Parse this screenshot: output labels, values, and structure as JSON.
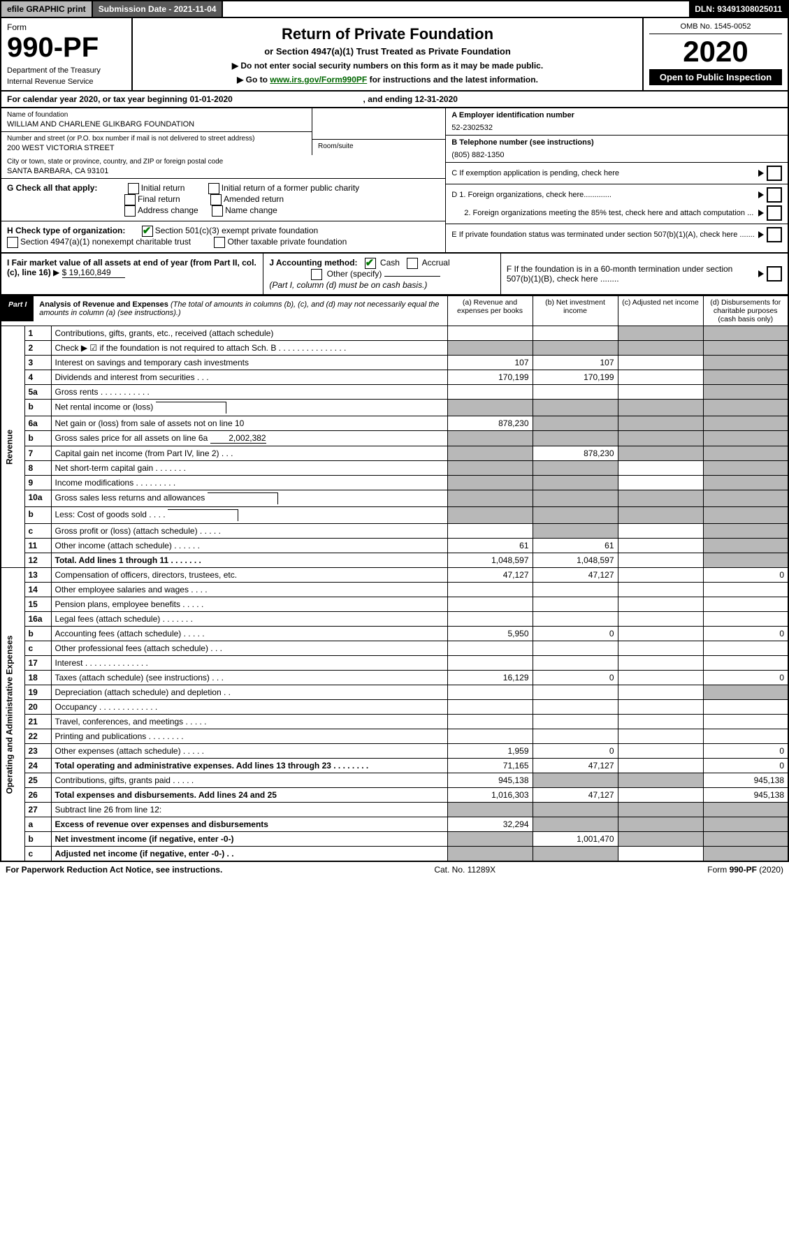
{
  "topbar": {
    "efile": "efile GRAPHIC print",
    "submission": "Submission Date - 2021-11-04",
    "dln": "DLN: 93491308025011"
  },
  "header": {
    "form_label": "Form",
    "form_number": "990-PF",
    "dept1": "Department of the Treasury",
    "dept2": "Internal Revenue Service",
    "title": "Return of Private Foundation",
    "subtitle": "or Section 4947(a)(1) Trust Treated as Private Foundation",
    "instr1": "▶ Do not enter social security numbers on this form as it may be made public.",
    "instr2_pre": "▶ Go to ",
    "instr2_link": "www.irs.gov/Form990PF",
    "instr2_post": " for instructions and the latest information.",
    "omb": "OMB No. 1545-0052",
    "year": "2020",
    "open_public": "Open to Public Inspection"
  },
  "cal_year": {
    "pre": "For calendar year 2020, or tax year beginning ",
    "begin": "01-01-2020",
    "mid": ", and ending ",
    "end": "12-31-2020"
  },
  "info": {
    "name_label": "Name of foundation",
    "name": "WILLIAM AND CHARLENE GLIKBARG FOUNDATION",
    "street_label": "Number and street (or P.O. box number if mail is not delivered to street address)",
    "street": "200 WEST VICTORIA STREET",
    "room_label": "Room/suite",
    "city_label": "City or town, state or province, country, and ZIP or foreign postal code",
    "city": "SANTA BARBARA, CA  93101",
    "ein_label": "A Employer identification number",
    "ein": "52-2302532",
    "tel_label": "B Telephone number (see instructions)",
    "tel": "(805) 882-1350",
    "c_label": "C If exemption application is pending, check here",
    "d1_label": "D 1. Foreign organizations, check here.............",
    "d2_label": "2. Foreign organizations meeting the 85% test, check here and attach computation ...",
    "e_label": "E If private foundation status was terminated under section 507(b)(1)(A), check here .......",
    "f_label": "F If the foundation is in a 60-month termination under section 507(b)(1)(B), check here ........"
  },
  "g": {
    "label": "G Check all that apply:",
    "opts": [
      "Initial return",
      "Initial return of a former public charity",
      "Final return",
      "Amended return",
      "Address change",
      "Name change"
    ]
  },
  "h": {
    "label": "H Check type of organization:",
    "opt1": "Section 501(c)(3) exempt private foundation",
    "opt2": "Section 4947(a)(1) nonexempt charitable trust",
    "opt3": "Other taxable private foundation"
  },
  "i": {
    "label": "I Fair market value of all assets at end of year (from Part II, col. (c), line 16)",
    "val": "$  19,160,849"
  },
  "j": {
    "label": "J Accounting method:",
    "cash": "Cash",
    "accrual": "Accrual",
    "other": "Other (specify)",
    "note": "(Part I, column (d) must be on cash basis.)"
  },
  "part1": {
    "label": "Part I",
    "title": "Analysis of Revenue and Expenses",
    "subtitle": "(The total of amounts in columns (b), (c), and (d) may not necessarily equal the amounts in column (a) (see instructions).)",
    "col_a": "(a) Revenue and expenses per books",
    "col_b": "(b) Net investment income",
    "col_c": "(c) Adjusted net income",
    "col_d": "(d) Disbursements for charitable purposes (cash basis only)"
  },
  "side": {
    "revenue": "Revenue",
    "expenses": "Operating and Administrative Expenses"
  },
  "rows": [
    {
      "n": "1",
      "desc": "Contributions, gifts, grants, etc., received (attach schedule)",
      "a": "",
      "b": "",
      "c": "g",
      "d": "g"
    },
    {
      "n": "2",
      "desc": "Check ▶ ☑ if the foundation is not required to attach Sch. B   .  .  .  .  .  .  .  .  .  .  .  .  .  .  .",
      "a": "g",
      "b": "g",
      "c": "g",
      "d": "g",
      "nob": true
    },
    {
      "n": "3",
      "desc": "Interest on savings and temporary cash investments",
      "a": "107",
      "b": "107",
      "c": "",
      "d": "g"
    },
    {
      "n": "4",
      "desc": "Dividends and interest from securities   .  .  .",
      "a": "170,199",
      "b": "170,199",
      "c": "",
      "d": "g"
    },
    {
      "n": "5a",
      "desc": "Gross rents   .  .  .  .  .  .  .  .  .  .  .",
      "a": "",
      "b": "",
      "c": "",
      "d": "g"
    },
    {
      "n": "b",
      "desc": "Net rental income or (loss)",
      "a": "g",
      "b": "g",
      "c": "g",
      "d": "g",
      "inline_box": true
    },
    {
      "n": "6a",
      "desc": "Net gain or (loss) from sale of assets not on line 10",
      "a": "878,230",
      "b": "g",
      "c": "g",
      "d": "g"
    },
    {
      "n": "b",
      "desc": "Gross sales price for all assets on line 6a",
      "a": "g",
      "b": "g",
      "c": "g",
      "d": "g",
      "inline_val": "2,002,382"
    },
    {
      "n": "7",
      "desc": "Capital gain net income (from Part IV, line 2)   .  .  .",
      "a": "g",
      "b": "878,230",
      "c": "g",
      "d": "g"
    },
    {
      "n": "8",
      "desc": "Net short-term capital gain   .  .  .  .  .  .  .",
      "a": "g",
      "b": "g",
      "c": "",
      "d": "g"
    },
    {
      "n": "9",
      "desc": "Income modifications  .  .  .  .  .  .  .  .  .",
      "a": "g",
      "b": "g",
      "c": "",
      "d": "g"
    },
    {
      "n": "10a",
      "desc": "Gross sales less returns and allowances",
      "a": "g",
      "b": "g",
      "c": "g",
      "d": "g",
      "inline_box": true
    },
    {
      "n": "b",
      "desc": "Less: Cost of goods sold    .  .  .  .",
      "a": "g",
      "b": "g",
      "c": "g",
      "d": "g",
      "inline_box": true
    },
    {
      "n": "c",
      "desc": "Gross profit or (loss) (attach schedule)   .  .  .  .  .",
      "a": "",
      "b": "g",
      "c": "",
      "d": "g"
    },
    {
      "n": "11",
      "desc": "Other income (attach schedule)   .  .  .  .  .  .",
      "a": "61",
      "b": "61",
      "c": "",
      "d": "g"
    },
    {
      "n": "12",
      "desc": "Total. Add lines 1 through 11   .  .  .  .  .  .  .",
      "a": "1,048,597",
      "b": "1,048,597",
      "c": "",
      "d": "g",
      "bold": true
    }
  ],
  "exp_rows": [
    {
      "n": "13",
      "desc": "Compensation of officers, directors, trustees, etc.",
      "a": "47,127",
      "b": "47,127",
      "c": "",
      "d": "0"
    },
    {
      "n": "14",
      "desc": "Other employee salaries and wages   .  .  .  .",
      "a": "",
      "b": "",
      "c": "",
      "d": ""
    },
    {
      "n": "15",
      "desc": "Pension plans, employee benefits  .  .  .  .  .",
      "a": "",
      "b": "",
      "c": "",
      "d": ""
    },
    {
      "n": "16a",
      "desc": "Legal fees (attach schedule)  .  .  .  .  .  .  .",
      "a": "",
      "b": "",
      "c": "",
      "d": ""
    },
    {
      "n": "b",
      "desc": "Accounting fees (attach schedule)  .  .  .  .  .",
      "a": "5,950",
      "b": "0",
      "c": "",
      "d": "0"
    },
    {
      "n": "c",
      "desc": "Other professional fees (attach schedule)   .  .  .",
      "a": "",
      "b": "",
      "c": "",
      "d": ""
    },
    {
      "n": "17",
      "desc": "Interest  .  .  .  .  .  .  .  .  .  .  .  .  .  .",
      "a": "",
      "b": "",
      "c": "",
      "d": ""
    },
    {
      "n": "18",
      "desc": "Taxes (attach schedule) (see instructions)   .  .  .",
      "a": "16,129",
      "b": "0",
      "c": "",
      "d": "0"
    },
    {
      "n": "19",
      "desc": "Depreciation (attach schedule) and depletion   .  .",
      "a": "",
      "b": "",
      "c": "",
      "d": "g"
    },
    {
      "n": "20",
      "desc": "Occupancy  .  .  .  .  .  .  .  .  .  .  .  .  .",
      "a": "",
      "b": "",
      "c": "",
      "d": ""
    },
    {
      "n": "21",
      "desc": "Travel, conferences, and meetings  .  .  .  .  .",
      "a": "",
      "b": "",
      "c": "",
      "d": ""
    },
    {
      "n": "22",
      "desc": "Printing and publications  .  .  .  .  .  .  .  .",
      "a": "",
      "b": "",
      "c": "",
      "d": ""
    },
    {
      "n": "23",
      "desc": "Other expenses (attach schedule)  .  .  .  .  .",
      "a": "1,959",
      "b": "0",
      "c": "",
      "d": "0"
    },
    {
      "n": "24",
      "desc": "Total operating and administrative expenses. Add lines 13 through 23   .  .  .  .  .  .  .  .",
      "a": "71,165",
      "b": "47,127",
      "c": "",
      "d": "0",
      "bold": true
    },
    {
      "n": "25",
      "desc": "Contributions, gifts, grants paid   .  .  .  .  .",
      "a": "945,138",
      "b": "g",
      "c": "g",
      "d": "945,138"
    },
    {
      "n": "26",
      "desc": "Total expenses and disbursements. Add lines 24 and 25",
      "a": "1,016,303",
      "b": "47,127",
      "c": "",
      "d": "945,138",
      "bold": true
    },
    {
      "n": "27",
      "desc": "Subtract line 26 from line 12:",
      "a": "g",
      "b": "g",
      "c": "g",
      "d": "g"
    },
    {
      "n": "a",
      "desc": "Excess of revenue over expenses and disbursements",
      "a": "32,294",
      "b": "g",
      "c": "g",
      "d": "g",
      "bold": true
    },
    {
      "n": "b",
      "desc": "Net investment income (if negative, enter -0-)",
      "a": "g",
      "b": "1,001,470",
      "c": "g",
      "d": "g",
      "bold": true
    },
    {
      "n": "c",
      "desc": "Adjusted net income (if negative, enter -0-)   .  .",
      "a": "g",
      "b": "g",
      "c": "",
      "d": "g",
      "bold": true
    }
  ],
  "footer": {
    "left": "For Paperwork Reduction Act Notice, see instructions.",
    "mid": "Cat. No. 11289X",
    "right": "Form 990-PF (2020)"
  }
}
